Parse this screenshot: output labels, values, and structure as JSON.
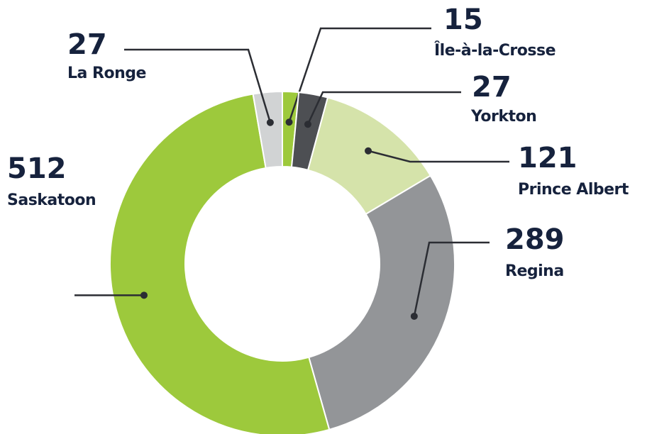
{
  "chart_data": {
    "type": "donut",
    "categories": [
      "Île-à-la-Crosse",
      "Yorkton",
      "Prince Albert",
      "Regina",
      "Saskatoon",
      "La Ronge"
    ],
    "values": [
      15,
      27,
      121,
      289,
      512,
      27
    ],
    "colors": [
      "#9dc93c",
      "#4d4f53",
      "#d5e3aa",
      "#939598",
      "#9dc93c",
      "#d1d3d4"
    ]
  }
}
